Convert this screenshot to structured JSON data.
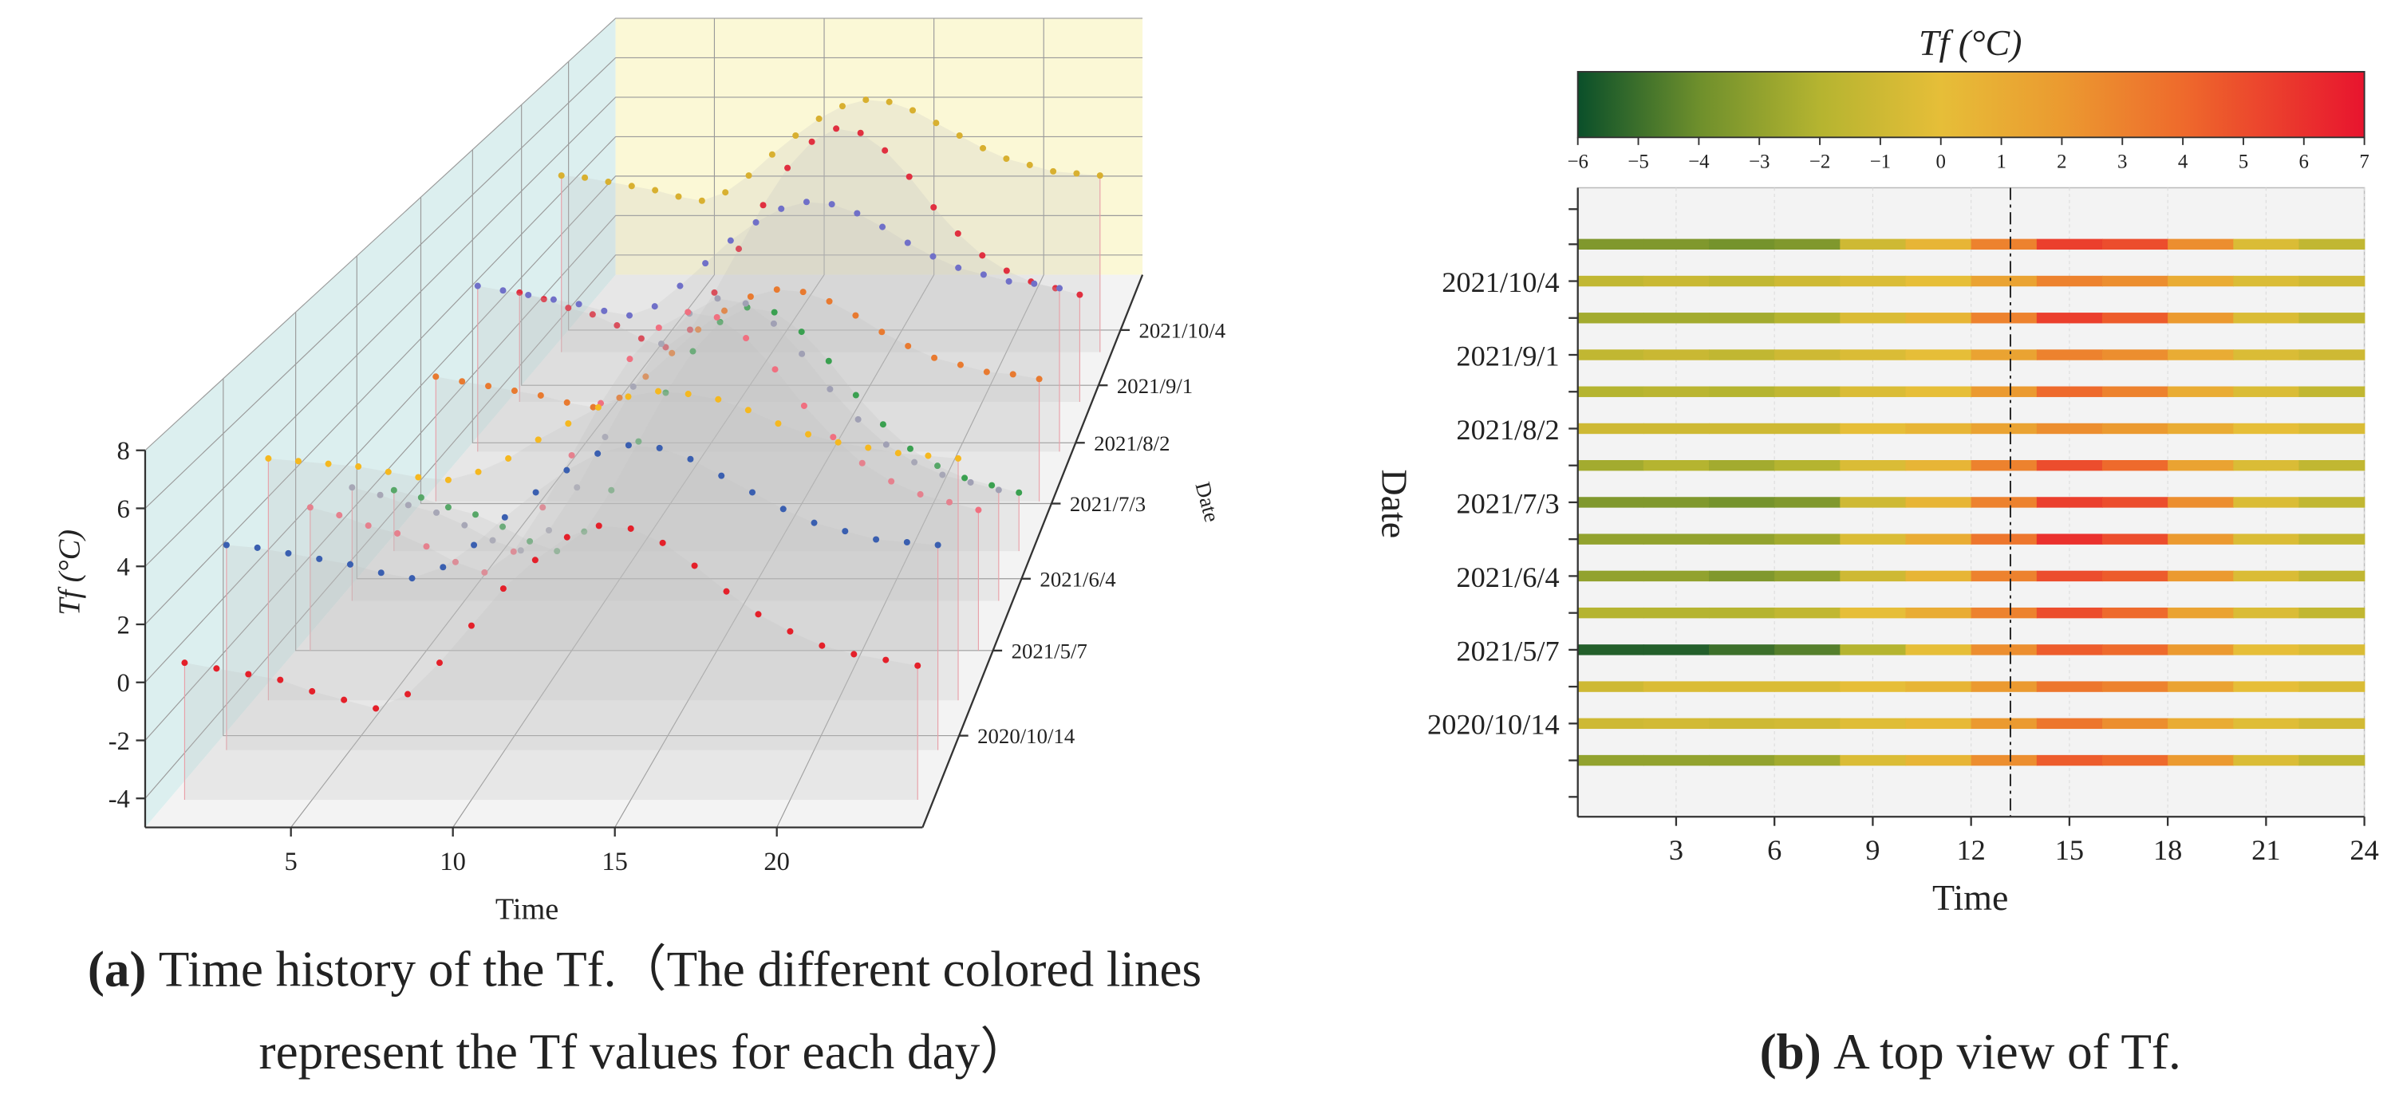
{
  "chart_data": [
    {
      "type": "line3d",
      "x_label": "Time",
      "y_label": "Tf (°C)",
      "z_label": "Date",
      "dates": [
        "2020/10/14",
        "2021/5/7",
        "2021/6/4",
        "2021/7/3",
        "2021/8/2",
        "2021/9/1",
        "2021/10/4"
      ],
      "x": [
        1,
        2,
        3,
        4,
        5,
        6,
        7,
        8,
        9,
        10,
        11,
        12,
        13,
        14,
        15,
        16,
        17,
        18,
        19,
        20,
        21,
        22,
        23,
        24
      ],
      "xlim": [
        0.5,
        24.5
      ],
      "ylim": [
        -5,
        8
      ],
      "xticks": [
        5,
        10,
        15,
        20
      ],
      "yticks": [
        -4,
        -2,
        0,
        2,
        4,
        6,
        8
      ],
      "grid": true,
      "series": [
        {
          "color": "#e4202a",
          "values": [
            -0.2,
            -0.4,
            -0.6,
            -0.8,
            -1.2,
            -1.5,
            -1.8,
            -1.3,
            -0.2,
            1.1,
            2.4,
            3.4,
            4.2,
            4.6,
            4.5,
            4.0,
            3.2,
            2.3,
            1.5,
            0.9,
            0.4,
            0.1,
            -0.1,
            -0.3
          ]
        },
        {
          "color": "#3a5fb0",
          "values": [
            2.4,
            2.3,
            2.1,
            1.9,
            1.7,
            1.4,
            1.2,
            1.6,
            2.4,
            3.4,
            4.3,
            5.1,
            5.7,
            6.0,
            5.9,
            5.5,
            4.9,
            4.3,
            3.7,
            3.2,
            2.9,
            2.6,
            2.5,
            2.4
          ]
        },
        {
          "color": "#f5b820",
          "values": [
            4.0,
            3.9,
            3.8,
            3.7,
            3.5,
            3.3,
            3.2,
            3.5,
            4.0,
            4.7,
            5.3,
            5.9,
            6.3,
            6.5,
            6.4,
            6.2,
            5.8,
            5.3,
            4.9,
            4.6,
            4.4,
            4.2,
            4.1,
            4.0
          ]
        },
        {
          "color": "#f07080",
          "values": [
            0.5,
            0.2,
            -0.2,
            -0.5,
            -1,
            -1.6,
            -2,
            -1.2,
            0.5,
            2.5,
            4.5,
            6.2,
            7.4,
            8,
            7.8,
            7,
            5.8,
            4.4,
            3.2,
            2.2,
            1.5,
            1,
            0.7,
            0.4
          ]
        },
        {
          "color": "#a0a0b4",
          "values": [
            -0.5,
            -0.8,
            -1.2,
            -1.5,
            -2,
            -2.6,
            -3,
            -2.2,
            -0.5,
            1.5,
            3.5,
            5.2,
            6.4,
            7,
            6.8,
            6,
            4.8,
            3.4,
            2.2,
            1.2,
            0.5,
            0,
            -0.3,
            -0.6
          ]
        },
        {
          "color": "#3aa050",
          "values": [
            -2.5,
            -2.8,
            -3.2,
            -3.5,
            -4,
            -4.6,
            -5,
            -4.2,
            -2.5,
            -0.5,
            1.5,
            3.2,
            4.4,
            5,
            4.8,
            4,
            2.8,
            1.4,
            0.2,
            -0.8,
            -1.5,
            -2,
            -2.3,
            -2.6
          ]
        },
        {
          "color": "#e87a30",
          "values": [
            0.3,
            0.1,
            -0.1,
            -0.3,
            -0.5,
            -0.8,
            -1,
            -0.6,
            0.3,
            1.3,
            2.3,
            3.1,
            3.7,
            4,
            3.9,
            3.5,
            2.9,
            2.2,
            1.6,
            1.1,
            0.8,
            0.5,
            0.4,
            0.2
          ]
        },
        {
          "color": "#7070c8",
          "values": [
            2.3,
            2.1,
            1.9,
            1.7,
            1.5,
            1.2,
            1,
            1.4,
            2.3,
            3.3,
            4.3,
            5.1,
            5.7,
            6,
            5.9,
            5.5,
            4.9,
            4.2,
            3.6,
            3.1,
            2.8,
            2.5,
            2.4,
            2.2
          ]
        },
        {
          "color": "#e03040",
          "values": [
            0,
            -0.3,
            -0.7,
            -1,
            -1.5,
            -2.1,
            -2.5,
            -1.7,
            0,
            2,
            4,
            5.7,
            6.9,
            7.5,
            7.3,
            6.5,
            5.3,
            3.9,
            2.7,
            1.7,
            1,
            0.5,
            0.2,
            -0.1
          ]
        },
        {
          "color": "#d8b030",
          "values": [
            3.4,
            3.3,
            3.1,
            2.9,
            2.7,
            2.4,
            2.2,
            2.6,
            3.4,
            4.4,
            5.3,
            6.1,
            6.7,
            7,
            6.9,
            6.5,
            5.9,
            5.3,
            4.7,
            4.2,
            3.9,
            3.6,
            3.5,
            3.4
          ]
        }
      ],
      "caption": {
        "label": "(a)",
        "lines": [
          "Time history of the Tf.（The different colored lines",
          "represent the Tf values for each day）"
        ]
      }
    },
    {
      "type": "heatmap",
      "title": "Tf (°C)",
      "x_label": "Time",
      "y_label": "Date",
      "bins": [
        0,
        2,
        4,
        6,
        8,
        10,
        12,
        14,
        16,
        18,
        20,
        22,
        24
      ],
      "xlim": [
        0,
        24
      ],
      "xticks": [
        3,
        6,
        9,
        12,
        15,
        18,
        21,
        24
      ],
      "categories": [
        null,
        "2021/10/4",
        null,
        "2021/9/1",
        null,
        "2021/8/2",
        null,
        "2021/7/3",
        null,
        "2021/6/4",
        null,
        "2021/5/7",
        null,
        "2020/10/14",
        null
      ],
      "rows": [
        [
          -3.5,
          -3.5,
          -3.8,
          -3.5,
          -1,
          0.5,
          3,
          5.5,
          5,
          2.5,
          -0.5,
          -1.5
        ],
        [
          -1.5,
          -1.2,
          -1.5,
          -1,
          -0.5,
          0,
          1.5,
          3,
          2.5,
          1,
          -0.5,
          -1
        ],
        [
          -2.5,
          -2.5,
          -2.5,
          -2,
          -0.5,
          0.5,
          3,
          5.5,
          4.5,
          2,
          -0.5,
          -1.5
        ],
        [
          -1.5,
          -1.2,
          -1.5,
          -1,
          -0.5,
          0,
          1.5,
          3,
          2.5,
          1,
          -0.5,
          -1
        ],
        [
          -2,
          -1.8,
          -2,
          -1.5,
          -0.5,
          0,
          2,
          4,
          3,
          1,
          -0.5,
          -1.5
        ],
        [
          -1,
          -1,
          -1,
          -1,
          0,
          0.5,
          1.5,
          2.5,
          2,
          1,
          0,
          -0.5
        ],
        [
          -2.5,
          -2,
          -2.5,
          -2,
          -0.5,
          0.5,
          3,
          5,
          4,
          1.5,
          -0.5,
          -1.5
        ],
        [
          -3.5,
          -3.5,
          -3.8,
          -3.5,
          -1,
          0.5,
          3,
          5.5,
          5,
          2.5,
          -0.5,
          -1.5
        ],
        [
          -3,
          -3,
          -3,
          -2.5,
          -0.5,
          1,
          3.5,
          6,
          5,
          2,
          -0.5,
          -1.5
        ],
        [
          -3,
          -3,
          -3.5,
          -3,
          -1,
          0.5,
          3,
          5,
          4.5,
          2,
          -0.5,
          -1.5
        ],
        [
          -2,
          -2,
          -2,
          -1.5,
          0,
          1,
          3,
          5,
          4,
          1.5,
          -0.5,
          -1.5
        ],
        [
          -5.5,
          -5.5,
          -5,
          -4.5,
          -2,
          0,
          2.5,
          4.5,
          4,
          2,
          0,
          -0.5
        ],
        [
          -1,
          -0.5,
          -0.5,
          -0.5,
          0,
          0.5,
          2,
          3.5,
          3,
          1.5,
          0,
          -0.5
        ],
        [
          -1,
          -0.8,
          -1,
          -0.8,
          -0.3,
          0.3,
          2,
          3.5,
          2.5,
          1,
          -0.3,
          -0.8
        ],
        [
          -3,
          -3,
          -3,
          -2.5,
          -0.5,
          0.5,
          2.5,
          4.5,
          4,
          2,
          -0.5,
          -1.5
        ]
      ],
      "clim": [
        -6,
        7
      ],
      "cticks": [
        {
          "value": -6,
          "label": "−6"
        },
        {
          "value": -5,
          "label": "−5"
        },
        {
          "value": -4,
          "label": "−4"
        },
        {
          "value": -3,
          "label": "−3"
        },
        {
          "value": -2,
          "label": "−2"
        },
        {
          "value": -1,
          "label": "−1"
        },
        0,
        1,
        2,
        3,
        4,
        5,
        6,
        7
      ],
      "colormap": [
        {
          "value": -6,
          "color": "#0a4f2a"
        },
        {
          "value": -4,
          "color": "#6e8f2c"
        },
        {
          "value": -2,
          "color": "#b5b430"
        },
        {
          "value": 0,
          "color": "#e6be38"
        },
        {
          "value": 2,
          "color": "#eb9a30"
        },
        {
          "value": 4,
          "color": "#ee6a2c"
        },
        {
          "value": 7,
          "color": "#e8142e"
        }
      ],
      "vline": 13.2,
      "caption": {
        "label": "(b)",
        "text": "A top view of Tf."
      }
    }
  ]
}
